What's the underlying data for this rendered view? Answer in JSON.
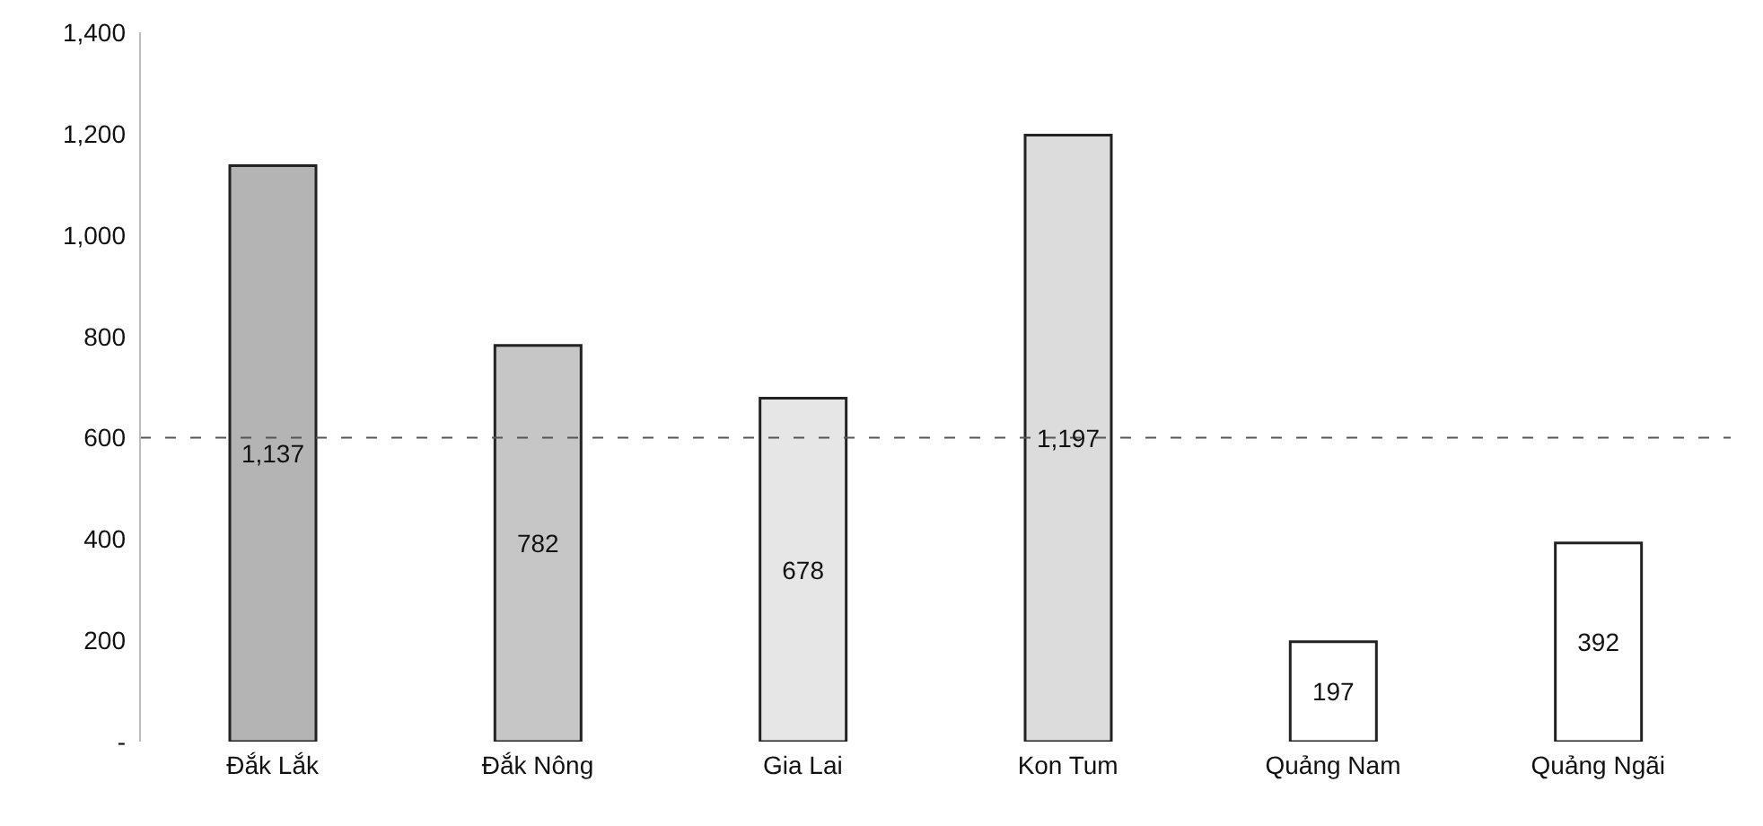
{
  "chart_data": {
    "type": "bar",
    "categories": [
      "Đắk Lắk",
      "Đắk Nông",
      "Gia Lai",
      "Kon Tum",
      "Quảng Nam",
      "Quảng Ngãi"
    ],
    "values": [
      1137,
      782,
      678,
      1197,
      197,
      392
    ],
    "colors": [
      "#b4b4b4",
      "#c6c6c6",
      "#e6e6e6",
      "#dcdcdc",
      "#ffffff",
      "#ffffff"
    ],
    "ylim": [
      0,
      1400
    ],
    "yticks": [
      {
        "value": 0,
        "label": "-"
      },
      200,
      400,
      600,
      800,
      "1,000",
      "1,200",
      "1,400"
    ],
    "ref_lines": [
      {
        "axis": "y",
        "value": 600,
        "color": "#555555",
        "line_style": "dashed"
      }
    ],
    "value_labels": [
      "1,137",
      "782",
      "678",
      "1,197",
      "197",
      "392"
    ],
    "grid": false
  }
}
